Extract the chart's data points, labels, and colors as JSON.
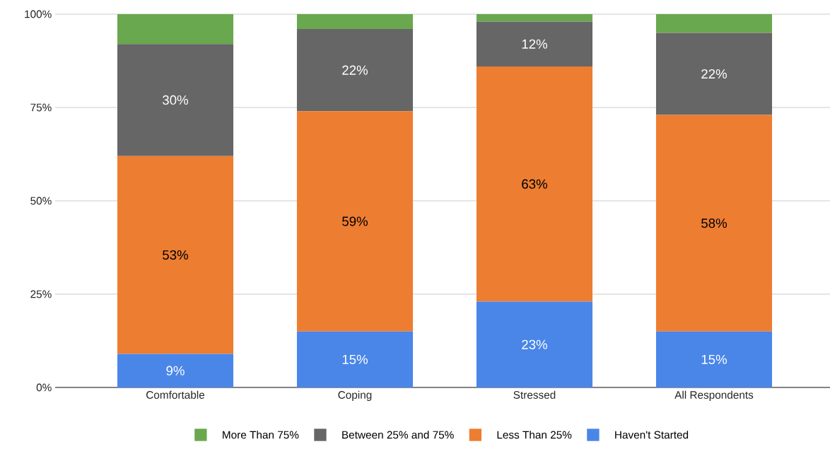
{
  "chart_data": {
    "type": "bar",
    "stacked": true,
    "categories": [
      "Comfortable",
      "Coping",
      "Stressed",
      "All Respondents"
    ],
    "series": [
      {
        "name": "Haven't Started",
        "color": "#4a86e8",
        "values": [
          9,
          15,
          23,
          15
        ],
        "value_labels": [
          "9%",
          "15%",
          "23%",
          "15%"
        ]
      },
      {
        "name": "Less Than 25%",
        "color": "#ed7d31",
        "values": [
          53,
          59,
          63,
          58
        ],
        "value_labels": [
          "53%",
          "59%",
          "63%",
          "58%"
        ]
      },
      {
        "name": "Between 25% and 75%",
        "color": "#666666",
        "values": [
          30,
          22,
          12,
          22
        ],
        "value_labels": [
          "30%",
          "22%",
          "12%",
          "22%"
        ]
      },
      {
        "name": "More Than 75%",
        "color": "#6aa84f",
        "values": [
          8,
          4,
          2,
          5
        ],
        "value_labels": [
          null,
          null,
          null,
          null
        ]
      }
    ],
    "ylim": [
      0,
      100
    ],
    "yticks": [
      {
        "value": 0,
        "label": "0%"
      },
      {
        "value": 25,
        "label": "25%"
      },
      {
        "value": 50,
        "label": "50%"
      },
      {
        "value": 75,
        "label": "75%"
      },
      {
        "value": 100,
        "label": "100%"
      }
    ],
    "grid": "y",
    "legend": "bottom"
  }
}
